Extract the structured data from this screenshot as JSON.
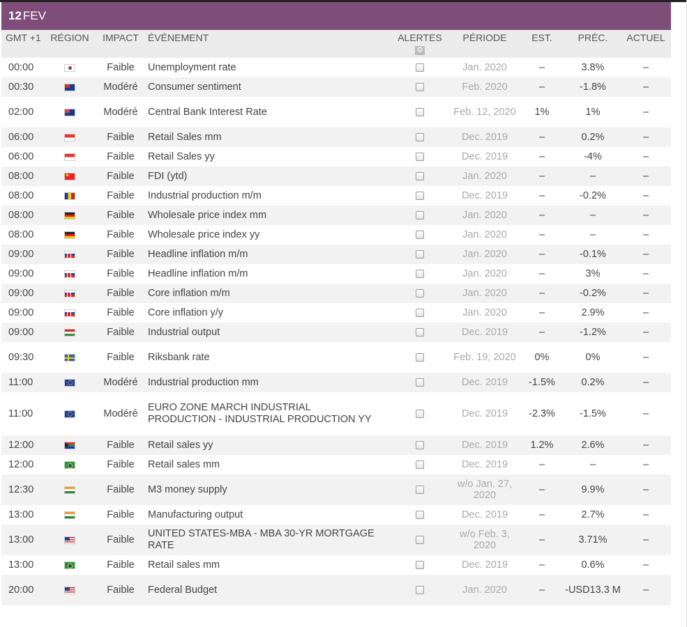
{
  "date": {
    "day": "12",
    "month": "FEV"
  },
  "columns": {
    "time": "GMT +1",
    "region": "RÉGION",
    "impact": "IMPACT",
    "event": "ÉVÉNEMENT",
    "alerts": "ALERTES",
    "period": "PÉRIODE",
    "est": "EST.",
    "prev": "PRÉC.",
    "actual": "ACTUEL"
  },
  "icons": {
    "settings": "gear-icon",
    "checkbox": "checkbox"
  },
  "colors": {
    "date_bar": "#7f4d7a",
    "header_bg": "#ececec",
    "row_alt": "#f2f2f2",
    "period_text": "#aaaaaa"
  },
  "rows": [
    {
      "time": "00:00",
      "region": "kr",
      "impact": "Faible",
      "event": "Unemployment rate",
      "period": "Jan. 2020",
      "est": "–",
      "prev": "3.8%",
      "actual": "–"
    },
    {
      "time": "00:30",
      "region": "au",
      "impact": "Modéré",
      "event": "Consumer sentiment",
      "period": "Feb. 2020",
      "est": "–",
      "prev": "-1.8%",
      "actual": "–"
    },
    {
      "time": "02:00",
      "region": "nz",
      "impact": "Modéré",
      "event": "Central Bank Interest Rate",
      "period": "Feb. 12, 2020",
      "est": "1%",
      "prev": "1%",
      "actual": "–"
    },
    {
      "time": "06:00",
      "region": "sg",
      "impact": "Faible",
      "event": "Retail Sales mm",
      "period": "Dec. 2019",
      "est": "–",
      "prev": "0.2%",
      "actual": "–"
    },
    {
      "time": "06:00",
      "region": "sg",
      "impact": "Faible",
      "event": "Retail Sales yy",
      "period": "Dec. 2019",
      "est": "–",
      "prev": "-4%",
      "actual": "–"
    },
    {
      "time": "08:00",
      "region": "cn",
      "impact": "Faible",
      "event": "FDI (ytd)",
      "period": "Jan. 2020",
      "est": "–",
      "prev": "–",
      "actual": "–"
    },
    {
      "time": "08:00",
      "region": "ro",
      "impact": "Faible",
      "event": "Industrial production m/m",
      "period": "Dec. 2019",
      "est": "–",
      "prev": "-0.2%",
      "actual": "–"
    },
    {
      "time": "08:00",
      "region": "de",
      "impact": "Faible",
      "event": "Wholesale price index mm",
      "period": "Jan. 2020",
      "est": "–",
      "prev": "–",
      "actual": "–"
    },
    {
      "time": "08:00",
      "region": "de",
      "impact": "Faible",
      "event": "Wholesale price index yy",
      "period": "Jan. 2020",
      "est": "–",
      "prev": "–",
      "actual": "–"
    },
    {
      "time": "09:00",
      "region": "sk",
      "impact": "Faible",
      "event": "Headline inflation m/m",
      "period": "Jan. 2020",
      "est": "–",
      "prev": "-0.1%",
      "actual": "–"
    },
    {
      "time": "09:00",
      "region": "sk",
      "impact": "Faible",
      "event": "Headline inflation m/m",
      "period": "Jan. 2020",
      "est": "–",
      "prev": "3%",
      "actual": "–"
    },
    {
      "time": "09:00",
      "region": "sk",
      "impact": "Faible",
      "event": "Core inflation m/m",
      "period": "Jan. 2020",
      "est": "–",
      "prev": "-0.2%",
      "actual": "–"
    },
    {
      "time": "09:00",
      "region": "sk",
      "impact": "Faible",
      "event": "Core inflation y/y",
      "period": "Jan. 2020",
      "est": "–",
      "prev": "2.9%",
      "actual": "–"
    },
    {
      "time": "09:00",
      "region": "hu",
      "impact": "Faible",
      "event": "Industrial output",
      "period": "Dec. 2019",
      "est": "–",
      "prev": "-1.2%",
      "actual": "–"
    },
    {
      "time": "09:30",
      "region": "se",
      "impact": "Faible",
      "event": "Riksbank rate",
      "period": "Feb. 19, 2020",
      "est": "0%",
      "prev": "0%",
      "actual": "–"
    },
    {
      "time": "11:00",
      "region": "eu",
      "impact": "Modéré",
      "event": "Industrial production mm",
      "period": "Dec. 2019",
      "est": "-1.5%",
      "prev": "0.2%",
      "actual": "–"
    },
    {
      "time": "11:00",
      "region": "eu",
      "impact": "Modéré",
      "event": "EURO ZONE MARCH INDUSTRIAL PRODUCTION - INDUSTRIAL PRODUCTION YY",
      "period": "Dec. 2019",
      "est": "-2.3%",
      "prev": "-1.5%",
      "actual": "–"
    },
    {
      "time": "12:00",
      "region": "za",
      "impact": "Faible",
      "event": "Retail sales yy",
      "period": "Dec. 2019",
      "est": "1.2%",
      "prev": "2.6%",
      "actual": "–"
    },
    {
      "time": "12:00",
      "region": "br",
      "impact": "Faible",
      "event": "Retail sales mm",
      "period": "Dec. 2019",
      "est": "–",
      "prev": "–",
      "actual": "–"
    },
    {
      "time": "12:30",
      "region": "in",
      "impact": "Faible",
      "event": "M3 money supply",
      "period": "w/o Jan. 27, 2020",
      "est": "–",
      "prev": "9.9%",
      "actual": "–"
    },
    {
      "time": "13:00",
      "region": "in",
      "impact": "Faible",
      "event": "Manufacturing output",
      "period": "Dec. 2019",
      "est": "–",
      "prev": "2.7%",
      "actual": "–"
    },
    {
      "time": "13:00",
      "region": "us",
      "impact": "Faible",
      "event": "UNITED STATES-MBA - MBA 30-YR MORTGAGE RATE",
      "period": "w/o Feb. 3, 2020",
      "est": "–",
      "prev": "3.71%",
      "actual": "–"
    },
    {
      "time": "13:00",
      "region": "br",
      "impact": "Faible",
      "event": "Retail sales mm",
      "period": "Dec. 2019",
      "est": "–",
      "prev": "0.6%",
      "actual": "–"
    },
    {
      "time": "20:00",
      "region": "us",
      "impact": "Faible",
      "event": "Federal Budget",
      "period": "Jan. 2020",
      "est": "–",
      "prev": "-USD13.3 M",
      "actual": "–"
    }
  ]
}
